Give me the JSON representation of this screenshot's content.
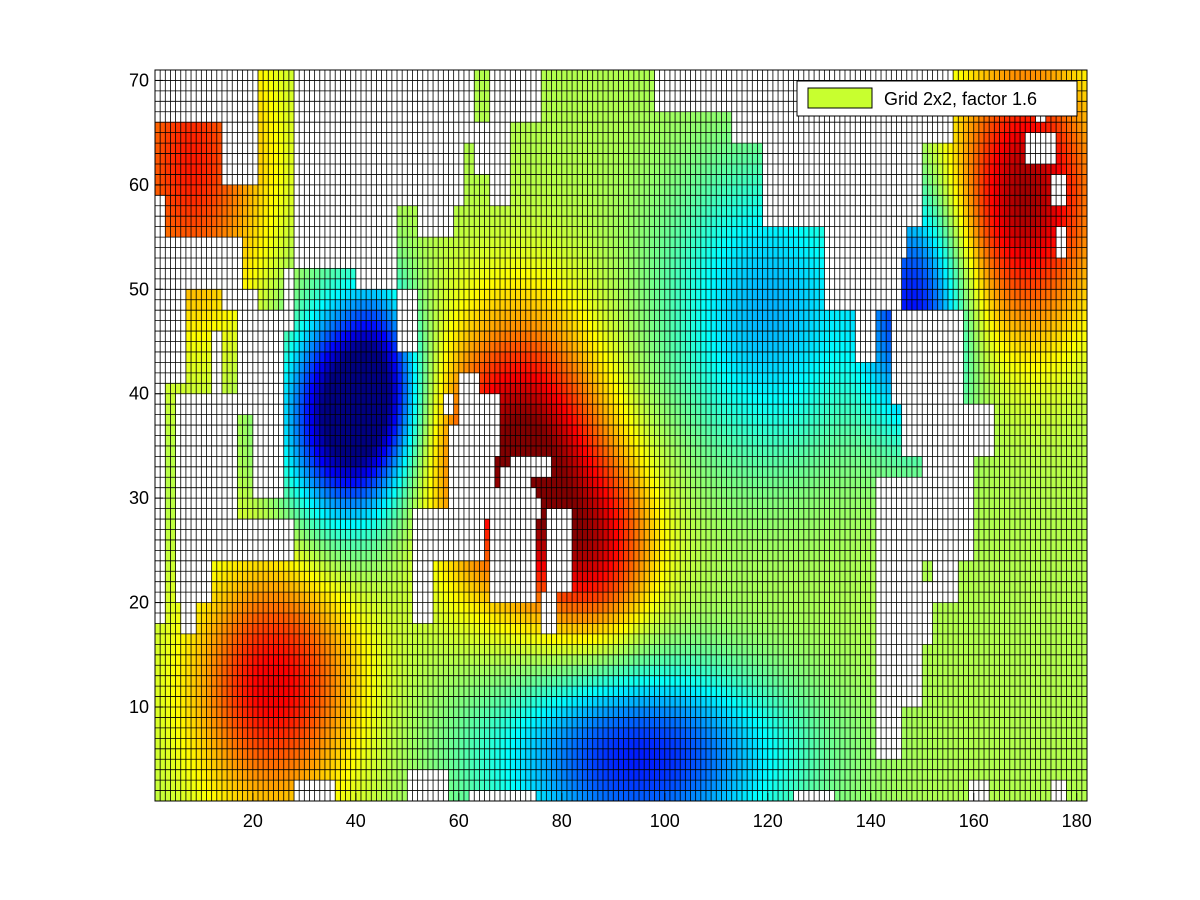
{
  "chart_data": {
    "type": "heatmap",
    "title": "",
    "xlabel": "",
    "ylabel": "",
    "xlim": [
      1,
      182
    ],
    "ylim": [
      1,
      71
    ],
    "grid": true,
    "grid_cell_size": 1,
    "colormap": "jet",
    "x_ticks": [
      20,
      40,
      60,
      80,
      100,
      120,
      140,
      160,
      180
    ],
    "x_tick_labels": [
      "20",
      "40",
      "60",
      "80",
      "100",
      "120",
      "140",
      "160",
      "180"
    ],
    "y_ticks": [
      10,
      20,
      30,
      40,
      50,
      60,
      70
    ],
    "y_tick_labels": [
      "10",
      "20",
      "30",
      "40",
      "50",
      "60",
      "70"
    ],
    "legend": {
      "placement": "top-right",
      "entries": [
        {
          "label": "Grid 2x2, factor 1.6",
          "color": "#c8ff2f"
        }
      ]
    },
    "field": {
      "base": 0.55,
      "bumps": [
        {
          "x": 72,
          "y": 34,
          "sx": 11,
          "sy": 9,
          "a": 0.48
        },
        {
          "x": 87,
          "y": 25,
          "sx": 8,
          "sy": 6,
          "a": 0.28
        },
        {
          "x": 38,
          "y": 38,
          "sx": 8,
          "sy": 7,
          "a": -0.62
        },
        {
          "x": 45,
          "y": 42,
          "sx": 5,
          "sy": 6,
          "a": -0.25
        },
        {
          "x": 170,
          "y": 59,
          "sx": 10,
          "sy": 9,
          "a": 0.42
        },
        {
          "x": 149,
          "y": 48,
          "sx": 7,
          "sy": 8,
          "a": -0.4
        },
        {
          "x": 24,
          "y": 12,
          "sx": 11,
          "sy": 8,
          "a": 0.34
        },
        {
          "x": 95,
          "y": 5,
          "sx": 20,
          "sy": 6,
          "a": -0.4
        },
        {
          "x": 120,
          "y": 48,
          "sx": 14,
          "sy": 10,
          "a": -0.25
        },
        {
          "x": 8,
          "y": 62,
          "sx": 10,
          "sy": 10,
          "a": 0.3
        }
      ],
      "mask": [
        [
          1,
          3,
          18,
          29
        ],
        [
          1,
          3,
          28,
          42
        ],
        [
          1,
          15,
          66,
          71
        ],
        [
          1,
          14,
          50,
          55
        ],
        [
          1,
          7,
          41,
          50
        ],
        [
          1,
          3,
          55,
          59
        ],
        [
          14,
          21,
          60,
          71
        ],
        [
          14,
          18,
          48,
          55
        ],
        [
          17,
          21,
          38,
          50
        ],
        [
          20,
          26,
          30,
          48
        ],
        [
          26,
          28,
          46,
          52
        ],
        [
          28,
          40,
          52,
          71
        ],
        [
          40,
          61,
          58,
          71
        ],
        [
          40,
          48,
          50,
          58
        ],
        [
          48,
          52,
          44,
          50
        ],
        [
          52,
          59,
          55,
          63
        ],
        [
          59,
          63,
          64,
          71
        ],
        [
          63,
          66,
          61,
          66
        ],
        [
          66,
          70,
          58,
          71
        ],
        [
          70,
          76,
          66,
          71
        ],
        [
          5,
          17,
          26,
          40
        ],
        [
          5,
          12,
          20,
          26
        ],
        [
          6,
          9,
          17,
          20
        ],
        [
          9,
          28,
          24,
          28
        ],
        [
          12,
          14,
          40,
          46
        ],
        [
          51,
          55,
          18,
          26
        ],
        [
          51,
          65,
          24,
          29
        ],
        [
          58,
          67,
          28,
          37
        ],
        [
          62,
          68,
          34,
          40
        ],
        [
          60,
          64,
          37,
          42
        ],
        [
          57,
          59,
          38,
          40
        ],
        [
          66,
          75,
          20,
          31
        ],
        [
          68,
          73,
          22,
          28
        ],
        [
          70,
          74,
          32,
          34
        ],
        [
          74,
          78,
          32,
          34
        ],
        [
          73,
          76,
          28,
          30
        ],
        [
          77,
          82,
          21,
          29
        ],
        [
          76,
          79,
          17,
          21
        ],
        [
          68,
          74,
          31,
          33
        ],
        [
          28,
          36,
          1,
          3
        ],
        [
          50,
          58,
          1,
          4
        ],
        [
          62,
          75,
          1,
          2
        ],
        [
          98,
          113,
          67,
          71
        ],
        [
          113,
          156,
          64,
          71
        ],
        [
          119,
          150,
          56,
          64
        ],
        [
          131,
          146,
          48,
          56
        ],
        [
          137,
          141,
          43,
          48
        ],
        [
          141,
          147,
          53,
          60
        ],
        [
          146,
          148,
          56,
          60
        ],
        [
          144,
          158,
          39,
          48
        ],
        [
          146,
          164,
          34,
          39
        ],
        [
          150,
          160,
          24,
          34
        ],
        [
          152,
          157,
          20,
          24
        ],
        [
          141,
          150,
          10,
          32
        ],
        [
          141,
          146,
          5,
          11
        ],
        [
          146,
          149,
          11,
          16
        ],
        [
          149,
          152,
          16,
          22
        ],
        [
          159,
          163,
          1,
          3
        ],
        [
          175,
          178,
          1,
          3
        ],
        [
          125,
          133,
          1,
          2
        ],
        [
          170,
          176,
          62,
          65
        ],
        [
          175,
          178,
          58,
          61
        ],
        [
          176,
          178,
          53,
          56
        ],
        [
          172,
          174,
          66,
          68
        ]
      ]
    }
  }
}
